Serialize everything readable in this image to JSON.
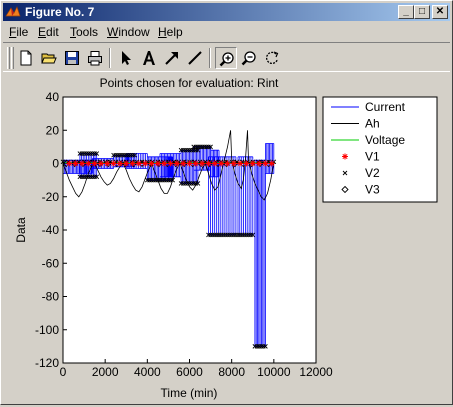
{
  "window": {
    "title": "Figure No. 7",
    "controls": {
      "minimize": "_",
      "maximize": "□",
      "close": "✕"
    }
  },
  "menu": [
    {
      "label": "File",
      "accel": "F",
      "rest": "ile"
    },
    {
      "label": "Edit",
      "accel": "E",
      "rest": "dit"
    },
    {
      "label": "Tools",
      "accel": "T",
      "rest": "ools"
    },
    {
      "label": "Window",
      "accel": "W",
      "rest": "indow"
    },
    {
      "label": "Help",
      "accel": "H",
      "rest": "elp"
    }
  ],
  "toolbar": [
    {
      "name": "new-file-icon"
    },
    {
      "name": "open-folder-icon"
    },
    {
      "name": "save-icon"
    },
    {
      "name": "print-icon"
    },
    {
      "name": "select-arrow-icon"
    },
    {
      "name": "insert-text-icon"
    },
    {
      "name": "insert-arrow-icon"
    },
    {
      "name": "insert-line-icon"
    },
    {
      "name": "zoom-in-icon",
      "pressed": true
    },
    {
      "name": "zoom-out-icon"
    },
    {
      "name": "rotate-3d-icon"
    }
  ],
  "chart_data": {
    "type": "line",
    "title": "Points chosen for evaluation: Rint",
    "xlabel": "Time (min)",
    "ylabel": "Data",
    "xlim": [
      0,
      12000
    ],
    "ylim": [
      -120,
      40
    ],
    "xticks": [
      "0",
      "2000",
      "4000",
      "6000",
      "8000",
      "10000",
      "12000"
    ],
    "yticks": [
      "40",
      "20",
      "0",
      "-20",
      "-40",
      "-60",
      "-80",
      "-100",
      "-120"
    ],
    "xtick_values": [
      0,
      2000,
      4000,
      6000,
      8000,
      10000,
      12000
    ],
    "ytick_values": [
      40,
      20,
      0,
      -20,
      -40,
      -60,
      -80,
      -100,
      -120
    ],
    "grid": false,
    "legend_position": "outside-right",
    "series": [
      {
        "name": "Current",
        "color": "#0000ff",
        "style": "line",
        "segments": [
          {
            "x0": 0,
            "x1": 1400,
            "hi": 2,
            "lo": -6,
            "n": 22
          },
          {
            "x0": 800,
            "x1": 1600,
            "hi": 6,
            "lo": -8,
            "n": 10
          },
          {
            "x0": 1400,
            "x1": 2400,
            "hi": 3,
            "lo": -3,
            "n": 14
          },
          {
            "x0": 2400,
            "x1": 3400,
            "hi": 5,
            "lo": -2,
            "n": 14
          },
          {
            "x0": 3000,
            "x1": 4000,
            "hi": 6,
            "lo": -3,
            "n": 12
          },
          {
            "x0": 4000,
            "x1": 5200,
            "hi": 4,
            "lo": -10,
            "n": 18
          },
          {
            "x0": 4600,
            "x1": 5600,
            "hi": 6,
            "lo": -8,
            "n": 14
          },
          {
            "x0": 5600,
            "x1": 6400,
            "hi": 8,
            "lo": -12,
            "n": 12
          },
          {
            "x0": 6200,
            "x1": 7000,
            "hi": 10,
            "lo": -4,
            "n": 12
          },
          {
            "x0": 7000,
            "x1": 7400,
            "hi": 8,
            "lo": -8,
            "n": 6
          },
          {
            "x0": 6900,
            "x1": 8200,
            "hi": 4,
            "lo": -43,
            "n": 14
          },
          {
            "x0": 8300,
            "x1": 9000,
            "hi": 4,
            "lo": -43,
            "n": 8
          },
          {
            "x0": 9100,
            "x1": 9600,
            "hi": 2,
            "lo": -110,
            "n": 8
          },
          {
            "x0": 9600,
            "x1": 10000,
            "hi": 12,
            "lo": -6,
            "n": 6
          }
        ]
      },
      {
        "name": "Ah",
        "color": "#000000",
        "style": "line",
        "points": [
          [
            0,
            0
          ],
          [
            150,
            -5
          ],
          [
            300,
            -10
          ],
          [
            450,
            -14
          ],
          [
            600,
            -18
          ],
          [
            750,
            -20
          ],
          [
            900,
            -17
          ],
          [
            1050,
            -12
          ],
          [
            1200,
            -6
          ],
          [
            1350,
            -2
          ],
          [
            1500,
            0
          ],
          [
            1650,
            -4
          ],
          [
            1800,
            -8
          ],
          [
            1950,
            -11
          ],
          [
            2100,
            -13
          ],
          [
            2250,
            -12
          ],
          [
            2400,
            -9
          ],
          [
            2550,
            -5
          ],
          [
            2700,
            -2
          ],
          [
            2850,
            0
          ],
          [
            3000,
            -4
          ],
          [
            3150,
            -9
          ],
          [
            3300,
            -13
          ],
          [
            3450,
            -16
          ],
          [
            3600,
            -17
          ],
          [
            3750,
            -14
          ],
          [
            3900,
            -9
          ],
          [
            4050,
            -4
          ],
          [
            4200,
            0
          ],
          [
            4350,
            -5
          ],
          [
            4500,
            -10
          ],
          [
            4650,
            -15
          ],
          [
            4800,
            -18
          ],
          [
            4950,
            -18
          ],
          [
            5100,
            -14
          ],
          [
            5250,
            -8
          ],
          [
            5400,
            -3
          ],
          [
            5550,
            0
          ],
          [
            5700,
            -5
          ],
          [
            5850,
            -10
          ],
          [
            6000,
            -14
          ],
          [
            6150,
            -16
          ],
          [
            6300,
            -13
          ],
          [
            6450,
            -8
          ],
          [
            6600,
            -3
          ],
          [
            6750,
            0
          ],
          [
            6900,
            -6
          ],
          [
            7050,
            -12
          ],
          [
            7200,
            -16
          ],
          [
            7350,
            -14
          ],
          [
            7500,
            -6
          ],
          [
            7650,
            2
          ],
          [
            7800,
            10
          ],
          [
            7950,
            20
          ],
          [
            8000,
            2
          ],
          [
            8150,
            -6
          ],
          [
            8300,
            -12
          ],
          [
            8450,
            -15
          ],
          [
            8550,
            -10
          ],
          [
            8650,
            2
          ],
          [
            8750,
            20
          ],
          [
            8800,
            2
          ],
          [
            8950,
            -6
          ],
          [
            9100,
            -12
          ],
          [
            9250,
            -16
          ],
          [
            9400,
            -20
          ],
          [
            9550,
            -22
          ],
          [
            9700,
            -18
          ],
          [
            9850,
            -10
          ],
          [
            9950,
            -3
          ],
          [
            10000,
            0
          ]
        ]
      },
      {
        "name": "Voltage",
        "color": "#00cc00",
        "style": "line",
        "points": [
          [
            0,
            0.5
          ],
          [
            10000,
            0.5
          ]
        ]
      },
      {
        "name": "V1",
        "color": "#ff0000",
        "style": "marker",
        "marker": "*",
        "x_start": 300,
        "x_end": 9900,
        "step": 300,
        "y": 0
      },
      {
        "name": "V2",
        "color": "#000000",
        "style": "marker",
        "marker": "x",
        "x_start": 0,
        "x_end": 10000,
        "step": 250,
        "y": 1,
        "groups": [
          {
            "x0": 800,
            "x1": 1600,
            "y": 6
          },
          {
            "x0": 800,
            "x1": 1600,
            "y": -8
          },
          {
            "x0": 2400,
            "x1": 3400,
            "y": 5
          },
          {
            "x0": 4000,
            "x1": 5200,
            "y": -10
          },
          {
            "x0": 5600,
            "x1": 6400,
            "y": 8
          },
          {
            "x0": 5600,
            "x1": 6400,
            "y": -12
          },
          {
            "x0": 6200,
            "x1": 7000,
            "y": 10
          },
          {
            "x0": 6900,
            "x1": 8200,
            "y": -43
          },
          {
            "x0": 8300,
            "x1": 9000,
            "y": -43
          },
          {
            "x0": 9100,
            "x1": 9600,
            "y": -110
          }
        ]
      },
      {
        "name": "V3",
        "color": "#000000",
        "style": "marker",
        "marker": "diamond",
        "x_start": 150,
        "x_end": 9950,
        "step": 400,
        "y": 0
      }
    ]
  }
}
